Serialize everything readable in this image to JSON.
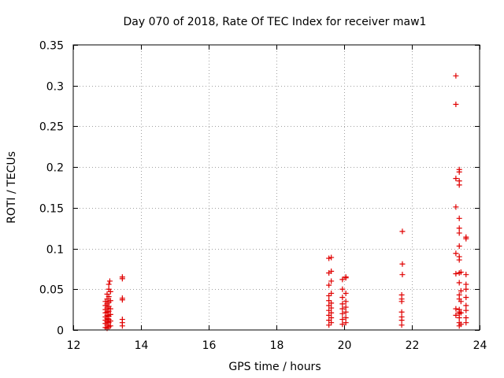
{
  "chart_data": {
    "type": "scatter",
    "title": "Day 070 of 2018, Rate Of TEC Index for receiver maw1",
    "xlabel": "GPS time / hours",
    "ylabel": "ROTI / TECUs",
    "xlim": [
      12,
      24
    ],
    "ylim": [
      0,
      0.35
    ],
    "xticks": [
      12,
      14,
      16,
      18,
      20,
      22,
      24
    ],
    "yticks": [
      0,
      0.05,
      0.1,
      0.15,
      0.2,
      0.25,
      0.3,
      0.35
    ],
    "xtick_labels": [
      "12",
      "14",
      "16",
      "18",
      "20",
      "22",
      "24"
    ],
    "ytick_labels": [
      "0",
      "0.05",
      "0.1",
      "0.15",
      "0.2",
      "0.25",
      "0.3",
      "0.35"
    ],
    "grid": true,
    "marker": "+",
    "color": "#e00000",
    "series": [
      {
        "name": "maw1",
        "points": [
          [
            12.95,
            0.003
          ],
          [
            12.95,
            0.008
          ],
          [
            12.95,
            0.012
          ],
          [
            12.95,
            0.016
          ],
          [
            12.95,
            0.021
          ],
          [
            12.95,
            0.025
          ],
          [
            12.95,
            0.03
          ],
          [
            12.95,
            0.035
          ],
          [
            13.0,
            0.002
          ],
          [
            13.0,
            0.006
          ],
          [
            13.0,
            0.01
          ],
          [
            13.0,
            0.014
          ],
          [
            13.0,
            0.018
          ],
          [
            13.0,
            0.022
          ],
          [
            13.0,
            0.027
          ],
          [
            13.0,
            0.032
          ],
          [
            13.0,
            0.038
          ],
          [
            13.0,
            0.044
          ],
          [
            13.05,
            0.004
          ],
          [
            13.05,
            0.009
          ],
          [
            13.05,
            0.013
          ],
          [
            13.05,
            0.017
          ],
          [
            13.05,
            0.023
          ],
          [
            13.05,
            0.029
          ],
          [
            13.05,
            0.034
          ],
          [
            13.05,
            0.041
          ],
          [
            13.05,
            0.05
          ],
          [
            13.05,
            0.056
          ],
          [
            13.1,
            0.005
          ],
          [
            13.1,
            0.011
          ],
          [
            13.1,
            0.019
          ],
          [
            13.1,
            0.026
          ],
          [
            13.1,
            0.036
          ],
          [
            13.1,
            0.047
          ],
          [
            13.08,
            0.06
          ],
          [
            13.45,
            0.005
          ],
          [
            13.45,
            0.009
          ],
          [
            13.45,
            0.013
          ],
          [
            13.45,
            0.037
          ],
          [
            13.45,
            0.039
          ],
          [
            13.45,
            0.063
          ],
          [
            13.45,
            0.065
          ],
          [
            19.55,
            0.006
          ],
          [
            19.55,
            0.012
          ],
          [
            19.55,
            0.018
          ],
          [
            19.55,
            0.024
          ],
          [
            19.55,
            0.03
          ],
          [
            19.55,
            0.036
          ],
          [
            19.55,
            0.042
          ],
          [
            19.55,
            0.055
          ],
          [
            19.55,
            0.07
          ],
          [
            19.55,
            0.088
          ],
          [
            19.62,
            0.009
          ],
          [
            19.62,
            0.015
          ],
          [
            19.62,
            0.021
          ],
          [
            19.62,
            0.027
          ],
          [
            19.62,
            0.033
          ],
          [
            19.62,
            0.045
          ],
          [
            19.62,
            0.06
          ],
          [
            19.62,
            0.072
          ],
          [
            19.62,
            0.089
          ],
          [
            19.95,
            0.007
          ],
          [
            19.95,
            0.013
          ],
          [
            19.95,
            0.02
          ],
          [
            19.95,
            0.026
          ],
          [
            19.95,
            0.032
          ],
          [
            19.95,
            0.04
          ],
          [
            19.95,
            0.05
          ],
          [
            19.95,
            0.062
          ],
          [
            20.05,
            0.009
          ],
          [
            20.05,
            0.015
          ],
          [
            20.05,
            0.022
          ],
          [
            20.05,
            0.028
          ],
          [
            20.05,
            0.035
          ],
          [
            20.05,
            0.045
          ],
          [
            20.05,
            0.064
          ],
          [
            20.05,
            0.065
          ],
          [
            21.7,
            0.006
          ],
          [
            21.7,
            0.012
          ],
          [
            21.7,
            0.016
          ],
          [
            21.7,
            0.022
          ],
          [
            21.7,
            0.035
          ],
          [
            21.7,
            0.038
          ],
          [
            21.7,
            0.043
          ],
          [
            21.72,
            0.068
          ],
          [
            21.72,
            0.081
          ],
          [
            21.72,
            0.121
          ],
          [
            23.3,
            0.312
          ],
          [
            23.3,
            0.277
          ],
          [
            23.3,
            0.186
          ],
          [
            23.3,
            0.151
          ],
          [
            23.3,
            0.094
          ],
          [
            23.3,
            0.069
          ],
          [
            23.3,
            0.026
          ],
          [
            23.3,
            0.018
          ],
          [
            23.4,
            0.005
          ],
          [
            23.4,
            0.009
          ],
          [
            23.4,
            0.015
          ],
          [
            23.4,
            0.02
          ],
          [
            23.4,
            0.022
          ],
          [
            23.4,
            0.025
          ],
          [
            23.4,
            0.038
          ],
          [
            23.4,
            0.043
          ],
          [
            23.4,
            0.058
          ],
          [
            23.4,
            0.07
          ],
          [
            23.4,
            0.086
          ],
          [
            23.4,
            0.09
          ],
          [
            23.4,
            0.103
          ],
          [
            23.4,
            0.119
          ],
          [
            23.4,
            0.125
          ],
          [
            23.4,
            0.137
          ],
          [
            23.4,
            0.178
          ],
          [
            23.4,
            0.183
          ],
          [
            23.4,
            0.194
          ],
          [
            23.4,
            0.197
          ],
          [
            23.45,
            0.007
          ],
          [
            23.45,
            0.021
          ],
          [
            23.45,
            0.035
          ],
          [
            23.45,
            0.048
          ],
          [
            23.45,
            0.071
          ],
          [
            23.6,
            0.009
          ],
          [
            23.6,
            0.015
          ],
          [
            23.6,
            0.024
          ],
          [
            23.6,
            0.03
          ],
          [
            23.6,
            0.04
          ],
          [
            23.6,
            0.05
          ],
          [
            23.6,
            0.056
          ],
          [
            23.6,
            0.068
          ],
          [
            23.6,
            0.112
          ],
          [
            23.6,
            0.114
          ]
        ]
      }
    ]
  }
}
